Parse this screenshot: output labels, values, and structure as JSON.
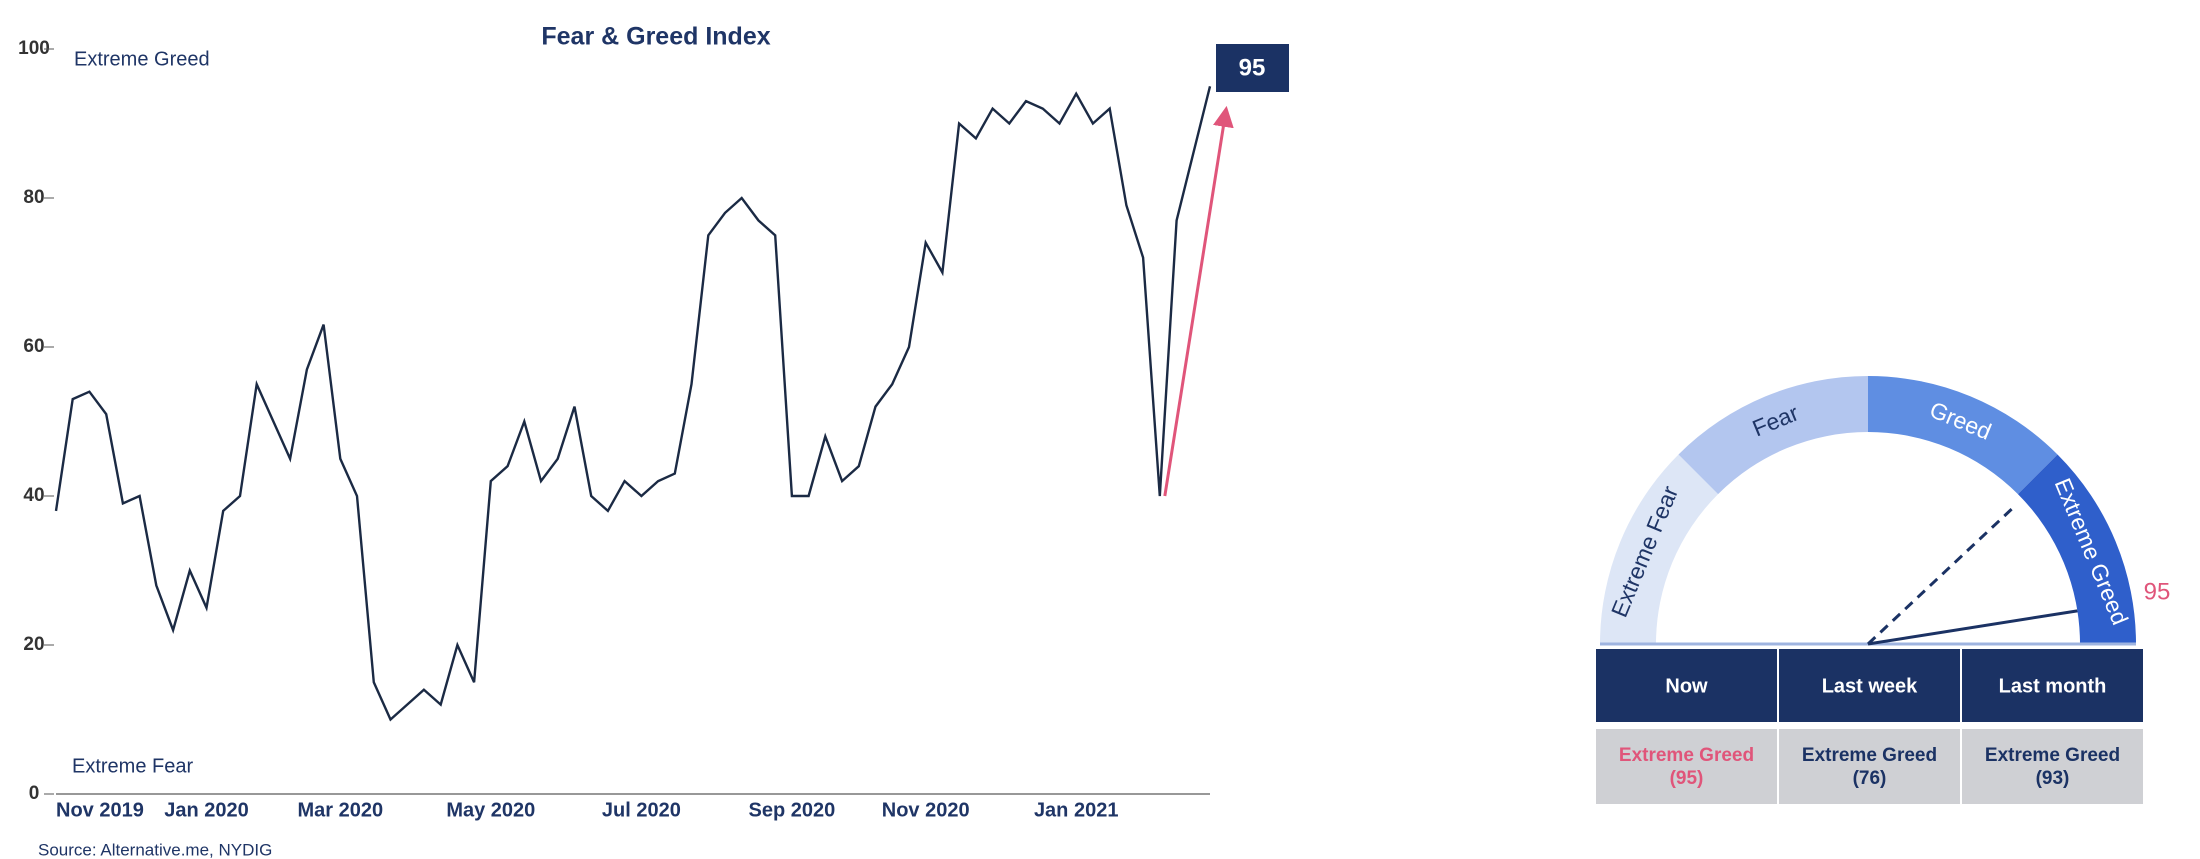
{
  "chart_data": [
    {
      "type": "line",
      "title": "Fear & Greed Index",
      "categories": [
        "Nov 2019",
        null,
        null,
        null,
        null,
        null,
        null,
        null,
        null,
        "Jan 2020",
        null,
        null,
        null,
        null,
        null,
        null,
        null,
        "Mar 2020",
        null,
        null,
        null,
        null,
        null,
        null,
        null,
        null,
        "May 2020",
        null,
        null,
        null,
        null,
        null,
        null,
        null,
        null,
        "Jul 2020",
        null,
        null,
        null,
        null,
        null,
        null,
        null,
        null,
        "Sep 2020",
        null,
        null,
        null,
        null,
        null,
        null,
        null,
        "Nov 2020",
        null,
        null,
        null,
        null,
        null,
        null,
        null,
        null,
        "Jan 2021",
        null,
        null,
        null,
        null,
        null,
        null,
        null,
        null
      ],
      "series": [
        {
          "name": "Fear & Greed Index",
          "color": "#1b2a44",
          "values": [
            38,
            53,
            54,
            51,
            39,
            40,
            28,
            22,
            30,
            25,
            38,
            40,
            55,
            50,
            45,
            57,
            63,
            45,
            40,
            15,
            10,
            12,
            14,
            12,
            20,
            15,
            42,
            44,
            50,
            42,
            45,
            52,
            40,
            38,
            42,
            40,
            42,
            43,
            55,
            75,
            78,
            80,
            77,
            75,
            40,
            40,
            48,
            42,
            44,
            52,
            55,
            60,
            74,
            70,
            90,
            88,
            92,
            90,
            93,
            92,
            90,
            94,
            90,
            92,
            79,
            72,
            40,
            77,
            86,
            95
          ]
        }
      ],
      "ylim": [
        0,
        100
      ],
      "yticks": [
        0,
        20,
        40,
        60,
        80,
        100
      ],
      "grid": false,
      "annotations": {
        "top": "Extreme Greed",
        "bottom": "Extreme Fear",
        "latest": "95",
        "arrow_color": "#e0557a",
        "box_color": "#1b3264"
      },
      "source": "Source: Alternative.me, NYDIG"
    },
    {
      "type": "gauge",
      "lim": [
        0,
        100
      ],
      "value": 95,
      "value_label": "95",
      "value_color": "#e0557a",
      "previous": 76,
      "segments": [
        {
          "label": "Extreme Fear",
          "from": 0,
          "to": 25,
          "color": "#dde6f6"
        },
        {
          "label": "Fear",
          "from": 25,
          "to": 50,
          "color": "#b3c6ef"
        },
        {
          "label": "Greed",
          "from": 50,
          "to": 75,
          "color": "#5f8ee2"
        },
        {
          "label": "Extreme Greed",
          "from": 75,
          "to": 100,
          "color": "#2f5fcb"
        }
      ]
    }
  ],
  "table": {
    "headers": [
      "Now",
      "Last week",
      "Last month"
    ],
    "cells": [
      [
        "Extreme Greed",
        "(95)"
      ],
      [
        "Extreme Greed",
        "(76)"
      ],
      [
        "Extreme Greed",
        "(93)"
      ]
    ]
  }
}
